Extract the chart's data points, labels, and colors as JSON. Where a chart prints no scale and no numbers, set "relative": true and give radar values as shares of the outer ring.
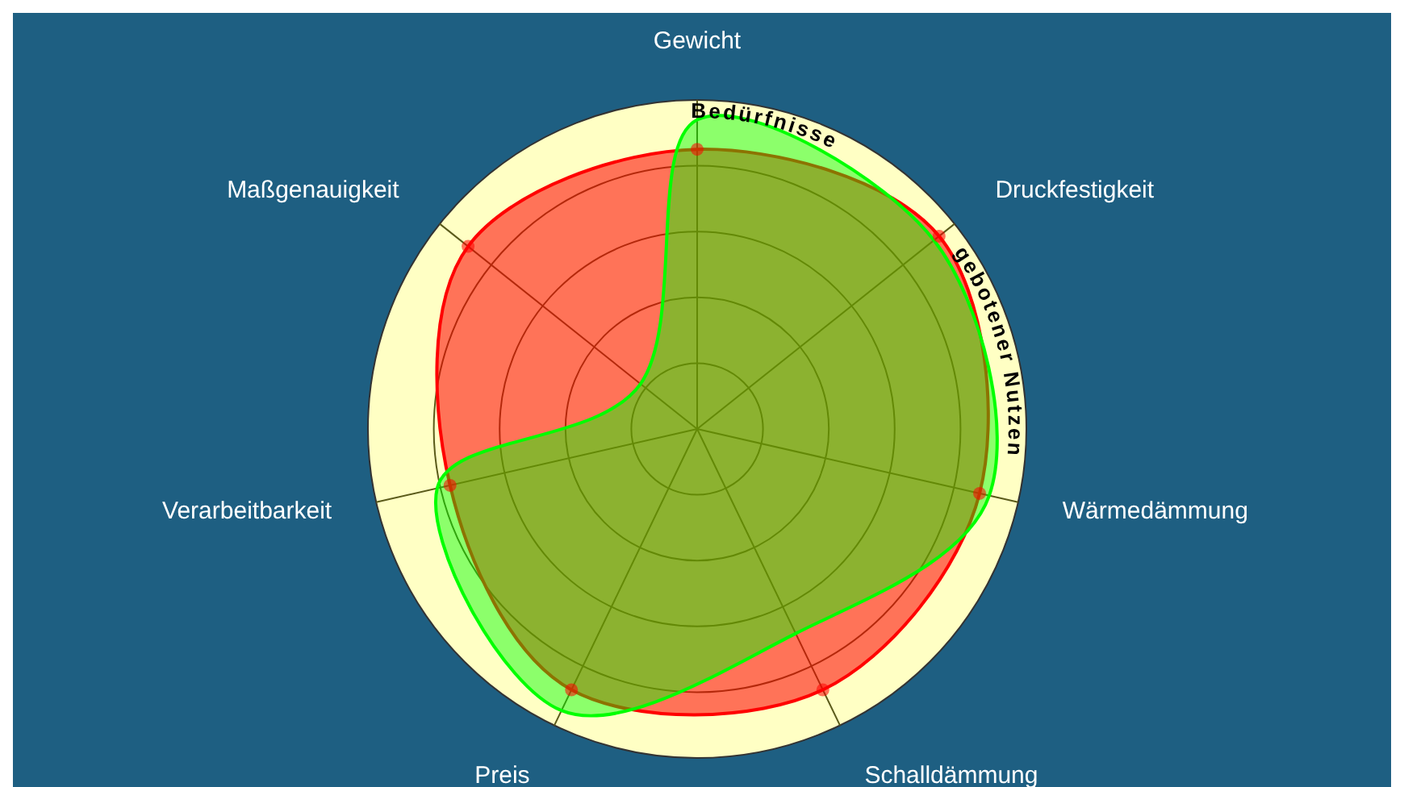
{
  "chart_data": {
    "type": "radar",
    "relative": true,
    "categories": [
      "Gewicht",
      "Druckfestigkeit",
      "Wärmedämmung",
      "Schalldämmung",
      "Preis",
      "Verarbeitbarkeit",
      "Maßgenauigkeit"
    ],
    "series": [
      {
        "name": "Bedürfnisse",
        "color": "#ff0000",
        "marker": "circle",
        "values": [
          0.85,
          0.94,
          0.88,
          0.88,
          0.88,
          0.77,
          0.89
        ]
      },
      {
        "name": "gebotener Nutzen",
        "color": "#00ff00",
        "marker": "none",
        "values": [
          0.94,
          0.92,
          0.91,
          0.69,
          0.95,
          0.81,
          0.22
        ]
      }
    ],
    "grid": true
  }
}
